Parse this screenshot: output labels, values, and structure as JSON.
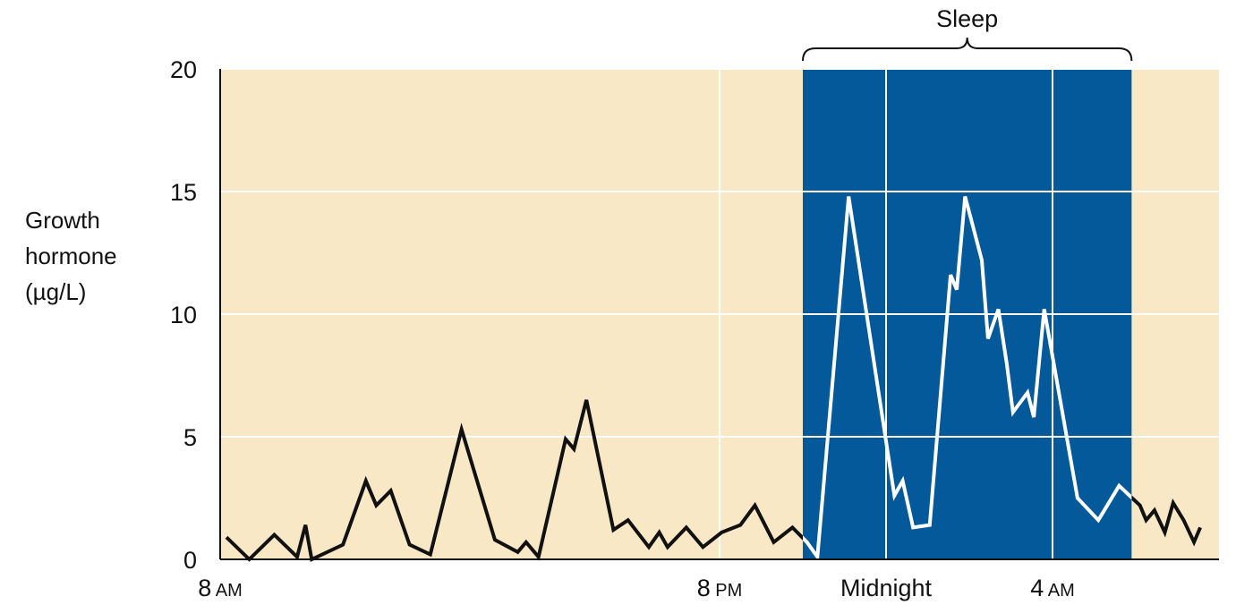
{
  "chart_data": {
    "type": "line",
    "title": "",
    "ylabel_lines": [
      "Growth",
      "hormone",
      "(µg/L)"
    ],
    "ylim": [
      0,
      20
    ],
    "yticks": [
      "0",
      "5",
      "10",
      "15",
      "20"
    ],
    "xlim": [
      8,
      32
    ],
    "xticks": [
      {
        "x": 8,
        "main": "8",
        "suffix": "AM"
      },
      {
        "x": 20,
        "main": "8",
        "suffix": "PM"
      },
      {
        "x": 24,
        "main": "Midnight",
        "suffix": ""
      },
      {
        "x": 28,
        "main": "4",
        "suffix": "AM"
      }
    ],
    "grid": true,
    "sleep": {
      "label": "Sleep",
      "start": 22,
      "end": 29.9
    },
    "colors": {
      "awake_bg": "#f9e8c6",
      "sleep_bg": "#03599a",
      "grid": "#ffffff",
      "awake_line": "#111111",
      "sleep_line": "#ffffff"
    },
    "series": [
      {
        "x": [
          8.15,
          8.7,
          9.3,
          9.85,
          10.05,
          10.2,
          10.95,
          11.5,
          11.75,
          12.1,
          12.55,
          13.05,
          13.8,
          14.6,
          15.15,
          15.35,
          15.65,
          16.3,
          16.5,
          16.8,
          17.45,
          17.8,
          18.3,
          18.55,
          18.75,
          19.2,
          19.6,
          20.05,
          20.5,
          20.85,
          21.3,
          21.75,
          22.1,
          22.35,
          23.1,
          24.2,
          24.4,
          24.65,
          25.05,
          25.55,
          25.7,
          25.9,
          26.3,
          26.45,
          26.7,
          26.9,
          27.05,
          27.4,
          27.55,
          27.8,
          28.6,
          29.1,
          29.6,
          30.1,
          30.25,
          30.45,
          30.7,
          30.9,
          31.15,
          31.4,
          31.55
        ],
        "y": [
          0.9,
          0.0,
          1.0,
          0.1,
          1.4,
          0.0,
          0.6,
          3.2,
          2.2,
          2.8,
          0.6,
          0.2,
          5.3,
          0.8,
          0.3,
          0.7,
          0.1,
          4.9,
          4.5,
          6.5,
          1.2,
          1.6,
          0.5,
          1.1,
          0.5,
          1.3,
          0.5,
          1.1,
          1.4,
          2.2,
          0.7,
          1.3,
          0.7,
          0.1,
          14.8,
          2.6,
          3.2,
          1.3,
          1.4,
          11.6,
          11.0,
          14.8,
          12.2,
          9.0,
          10.2,
          8.0,
          6.0,
          6.8,
          5.8,
          10.2,
          2.5,
          1.6,
          3.0,
          2.2,
          1.6,
          2.0,
          1.1,
          2.3,
          1.6,
          0.7,
          1.3
        ]
      }
    ]
  }
}
